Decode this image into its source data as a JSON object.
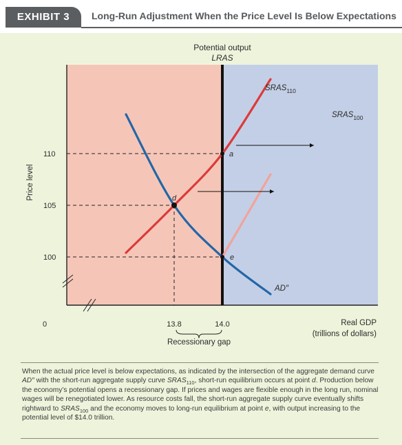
{
  "exhibit": {
    "badge": "EXHIBIT 3",
    "title": "Long-Run Adjustment When the Price Level Is Below Expectations"
  },
  "colors": {
    "left_region": "#f5c6b8",
    "right_region": "#c3cfe6",
    "ad": "#2366a8",
    "sras110": "#dd3a3a",
    "sras100": "#f2a39a",
    "lras": "#111111"
  },
  "chart_data": {
    "type": "line",
    "title": "Long-Run Adjustment When the Price Level Is Below Expectations",
    "xlabel": "Real GDP",
    "xlabel_units": "(trillions of dollars)",
    "ylabel": "Price level",
    "x_ticks": [
      "13.8",
      "14.0"
    ],
    "y_ticks": [
      "100",
      "105",
      "110"
    ],
    "origin_label": "0",
    "lras": {
      "label_top": "Potential output",
      "label": "LRAS",
      "x": 14.0
    },
    "series": [
      {
        "name": "AD″",
        "curve": "demand",
        "points": [
          [
            13.6,
            113.8
          ],
          [
            13.8,
            105
          ],
          [
            14.0,
            100
          ],
          [
            14.2,
            96.4
          ]
        ]
      },
      {
        "name": "SRAS",
        "subscript": "110",
        "curve": "supply",
        "points": [
          [
            13.6,
            100.4
          ],
          [
            13.8,
            105
          ],
          [
            14.0,
            110
          ],
          [
            14.2,
            117.2
          ]
        ]
      },
      {
        "name": "SRAS",
        "subscript": "100",
        "curve": "supply",
        "points": [
          [
            14.0,
            100
          ],
          [
            14.2,
            108
          ]
        ]
      }
    ],
    "points": [
      {
        "label": "a",
        "x": 14.0,
        "y": 110
      },
      {
        "label": "d",
        "x": 13.8,
        "y": 105
      },
      {
        "label": "e",
        "x": 14.0,
        "y": 100
      }
    ],
    "annotations": [
      "Recessionary gap"
    ]
  },
  "caption": {
    "t1": "When the actual price level is below expectations, as indicated by the intersection of the aggregate demand curve ",
    "ad": "AD″",
    "t2": " with the short-run aggregate supply curve ",
    "sras": "SRAS",
    "sub110": "110",
    "t3": ", short-run equilibrium occurs at point ",
    "pd": "d",
    "t4": ". Production below the economy’s potential opens a recessionary gap. If prices and wages are flexible enough in the long run, nominal wages will be renegotiated lower. As resource costs fall, the short-run aggregate supply curve eventually shifts rightward to ",
    "sras2": "SRAS",
    "sub100": "100",
    "t5": " and the economy moves to long-run equilibrium at point ",
    "pe": "e",
    "t6": ", with output increasing to the potential level of $14.0 trillion."
  }
}
